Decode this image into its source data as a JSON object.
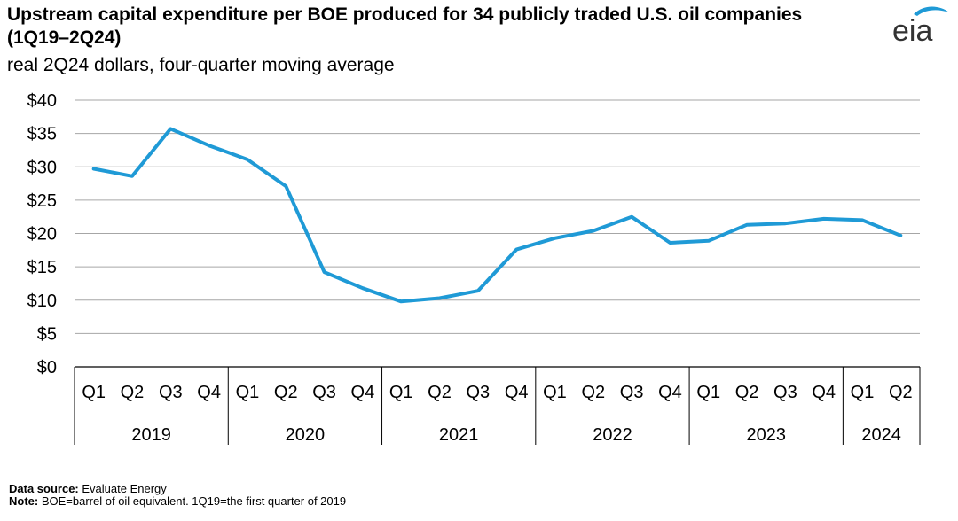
{
  "header": {
    "title": "Upstream capital expenditure per BOE produced for 34 publicly traded U.S. oil companies (1Q19–2Q24)",
    "subtitle": "real 2Q24 dollars, four-quarter moving average",
    "logo": "eia"
  },
  "chart_data": {
    "type": "line",
    "title": "Upstream capital expenditure per BOE produced for 34 publicly traded U.S. oil companies (1Q19–2Q24)",
    "ylabel": "real 2Q24 dollars, four-quarter moving average",
    "ylim": [
      0,
      40
    ],
    "y_ticks": [
      0,
      5,
      10,
      15,
      20,
      25,
      30,
      35,
      40
    ],
    "y_tick_labels": [
      "$0",
      "$5",
      "$10",
      "$15",
      "$20",
      "$25",
      "$30",
      "$35",
      "$40"
    ],
    "grid": true,
    "categories": [
      "Q1",
      "Q2",
      "Q3",
      "Q4",
      "Q1",
      "Q2",
      "Q3",
      "Q4",
      "Q1",
      "Q2",
      "Q3",
      "Q4",
      "Q1",
      "Q2",
      "Q3",
      "Q4",
      "Q1",
      "Q2",
      "Q3",
      "Q4",
      "Q1",
      "Q2"
    ],
    "years": [
      {
        "label": "2019",
        "count": 4
      },
      {
        "label": "2020",
        "count": 4
      },
      {
        "label": "2021",
        "count": 4
      },
      {
        "label": "2022",
        "count": 4
      },
      {
        "label": "2023",
        "count": 4
      },
      {
        "label": "2024",
        "count": 2
      }
    ],
    "series": [
      {
        "name": "Capex per BOE",
        "color": "#1f9ad6",
        "values": [
          29.7,
          28.6,
          35.7,
          33.2,
          31.1,
          27.1,
          14.2,
          11.8,
          9.8,
          10.3,
          11.4,
          17.6,
          19.3,
          20.4,
          22.5,
          18.6,
          18.9,
          21.3,
          21.5,
          22.2,
          22.0,
          19.7
        ]
      }
    ]
  },
  "footer": {
    "source_label": "Data source:",
    "source_text": "Evaluate Energy",
    "note_label": "Note:",
    "note_text": "BOE=barrel of oil equivalent. 1Q19=the first quarter of 2019"
  }
}
